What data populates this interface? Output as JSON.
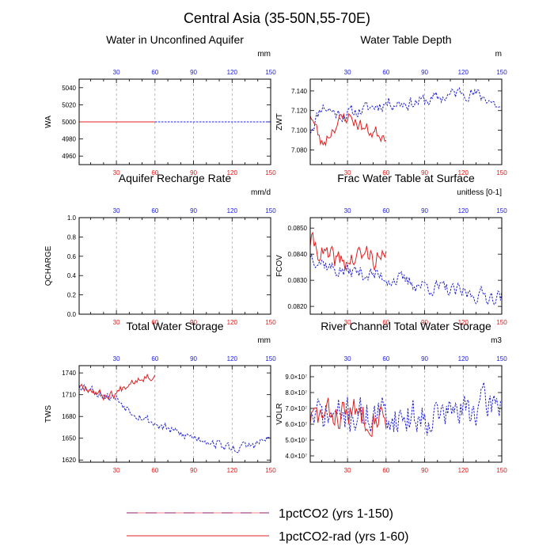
{
  "figure_title": "Central Asia (35-50N,55-70E)",
  "legend": [
    {
      "label": "1pctCO2 (yrs 1-150)",
      "color": "#2020d0",
      "dashed": true
    },
    {
      "label": "1pctCO2-rad (yrs 1-60)",
      "color": "#e02020",
      "dashed": false
    }
  ],
  "chart_data": [
    {
      "type": "line",
      "title": "Water in Unconfined Aquifer",
      "units": "mm",
      "ylabel": "WA",
      "xlim": [
        1,
        150
      ],
      "x_ticks": [
        30,
        60,
        90,
        120,
        150
      ],
      "ylim": [
        4950,
        5050
      ],
      "y_ticks": [
        4960,
        4980,
        5000,
        5020,
        5040
      ],
      "y_tick_labels": [
        "4960",
        "4980",
        "5000",
        "5020",
        "5040"
      ],
      "grid": true,
      "series": [
        {
          "gen": "const",
          "value": 5000,
          "years": 150,
          "dashed": true,
          "color": "#2020d0"
        },
        {
          "gen": "const",
          "value": 5000,
          "years": 60,
          "dashed": false,
          "color": "#e02020"
        }
      ]
    },
    {
      "type": "line",
      "title": "Water Table Depth",
      "units": "m",
      "ylabel": "ZWT",
      "xlim": [
        1,
        150
      ],
      "x_ticks": [
        30,
        60,
        90,
        120,
        150
      ],
      "ylim": [
        7.065,
        7.152
      ],
      "y_ticks": [
        7.08,
        7.1,
        7.12,
        7.14
      ],
      "y_tick_labels": [
        "7.080",
        "7.100",
        "7.120",
        "7.140"
      ],
      "grid": true,
      "series": [
        {
          "gen": "noise",
          "years": 150,
          "dashed": true,
          "color": "#2020d0",
          "seed": 11,
          "knots": [
            [
              1,
              7.1
            ],
            [
              10,
              7.125
            ],
            [
              25,
              7.115
            ],
            [
              40,
              7.12
            ],
            [
              60,
              7.128
            ],
            [
              80,
              7.128
            ],
            [
              100,
              7.132
            ],
            [
              120,
              7.14
            ],
            [
              140,
              7.132
            ],
            [
              150,
              7.12
            ]
          ],
          "amp": 0.008
        },
        {
          "gen": "noise",
          "years": 60,
          "dashed": false,
          "color": "#e02020",
          "seed": 23,
          "knots": [
            [
              1,
              7.118
            ],
            [
              10,
              7.085
            ],
            [
              20,
              7.105
            ],
            [
              30,
              7.115
            ],
            [
              45,
              7.1
            ],
            [
              60,
              7.095
            ]
          ],
          "amp": 0.009
        }
      ]
    },
    {
      "type": "line",
      "title": "Aquifer Recharge Rate",
      "units": "mm/d",
      "ylabel": "QCHARGE",
      "xlim": [
        1,
        150
      ],
      "x_ticks": [
        30,
        60,
        90,
        120,
        150
      ],
      "ylim": [
        0,
        1
      ],
      "y_ticks": [
        0,
        0.2,
        0.4,
        0.6,
        0.8,
        1.0
      ],
      "y_tick_labels": [
        "0.0",
        "0.2",
        "0.4",
        "0.6",
        "0.8",
        "1.0"
      ],
      "grid": true,
      "series": []
    },
    {
      "type": "line",
      "title": "Frac Water Table at Surface",
      "units": "unitless [0-1]",
      "ylabel": "FCOV",
      "xlim": [
        1,
        150
      ],
      "x_ticks": [
        30,
        60,
        90,
        120,
        150
      ],
      "ylim": [
        0.0817,
        0.0854
      ],
      "y_ticks": [
        0.082,
        0.083,
        0.084,
        0.085
      ],
      "y_tick_labels": [
        "0.0820",
        "0.0830",
        "0.0840",
        "0.0850"
      ],
      "grid": true,
      "series": [
        {
          "gen": "noise",
          "years": 150,
          "dashed": true,
          "color": "#2020d0",
          "seed": 37,
          "knots": [
            [
              1,
              0.084
            ],
            [
              20,
              0.0834
            ],
            [
              40,
              0.0833
            ],
            [
              60,
              0.0831
            ],
            [
              80,
              0.0829
            ],
            [
              100,
              0.0827
            ],
            [
              120,
              0.0825
            ],
            [
              140,
              0.0824
            ],
            [
              150,
              0.0824
            ]
          ],
          "amp": 0.00035
        },
        {
          "gen": "noise",
          "years": 60,
          "dashed": false,
          "color": "#e02020",
          "seed": 41,
          "knots": [
            [
              1,
              0.0845
            ],
            [
              15,
              0.0838
            ],
            [
              30,
              0.0837
            ],
            [
              45,
              0.084
            ],
            [
              60,
              0.0837
            ]
          ],
          "amp": 0.0005
        }
      ]
    },
    {
      "type": "line",
      "title": "Total Water Storage",
      "units": "mm",
      "ylabel": "TWS",
      "xlim": [
        1,
        150
      ],
      "x_ticks": [
        30,
        60,
        90,
        120,
        150
      ],
      "ylim": [
        1617,
        1750
      ],
      "y_ticks": [
        1620,
        1650,
        1680,
        1710,
        1740
      ],
      "y_tick_labels": [
        "1620",
        "1650",
        "1680",
        "1710",
        "1740"
      ],
      "grid": true,
      "series": [
        {
          "gen": "noise",
          "years": 150,
          "dashed": true,
          "color": "#2020d0",
          "seed": 53,
          "knots": [
            [
              1,
              1725
            ],
            [
              10,
              1718
            ],
            [
              20,
              1710
            ],
            [
              30,
              1705
            ],
            [
              40,
              1690
            ],
            [
              60,
              1670
            ],
            [
              80,
              1655
            ],
            [
              100,
              1648
            ],
            [
              120,
              1635
            ],
            [
              135,
              1640
            ],
            [
              150,
              1650
            ]
          ],
          "amp": 8
        },
        {
          "gen": "noise",
          "years": 60,
          "dashed": false,
          "color": "#e02020",
          "seed": 67,
          "knots": [
            [
              1,
              1725
            ],
            [
              10,
              1718
            ],
            [
              20,
              1708
            ],
            [
              30,
              1712
            ],
            [
              40,
              1728
            ],
            [
              50,
              1735
            ],
            [
              60,
              1736
            ]
          ],
          "amp": 7
        }
      ]
    },
    {
      "type": "line",
      "title": "River Channel Total Water Storage",
      "units": "m3",
      "ylabel": "VOLR",
      "xlim": [
        1,
        150
      ],
      "x_ticks": [
        30,
        60,
        90,
        120,
        150
      ],
      "ylim": [
        36000000,
        97000000
      ],
      "y_ticks": [
        40000000,
        50000000,
        60000000,
        70000000,
        80000000,
        90000000
      ],
      "y_tick_labels": [
        "4.0×10⁷",
        "5.0×10⁷",
        "6.0×10⁷",
        "7.0×10⁷",
        "8.0×10⁷",
        "9.0×10⁷"
      ],
      "grid": true,
      "series": [
        {
          "gen": "noise",
          "years": 150,
          "dashed": true,
          "color": "#2020d0",
          "seed": 71,
          "knots": [
            [
              1,
              65000000
            ],
            [
              40,
              66000000
            ],
            [
              80,
              65000000
            ],
            [
              120,
              68000000
            ],
            [
              150,
              75000000
            ]
          ],
          "amp": 13000000
        },
        {
          "gen": "noise",
          "years": 60,
          "dashed": false,
          "color": "#e02020",
          "seed": 83,
          "knots": [
            [
              1,
              64000000
            ],
            [
              30,
              67000000
            ],
            [
              60,
              66000000
            ]
          ],
          "amp": 11000000
        }
      ]
    }
  ]
}
